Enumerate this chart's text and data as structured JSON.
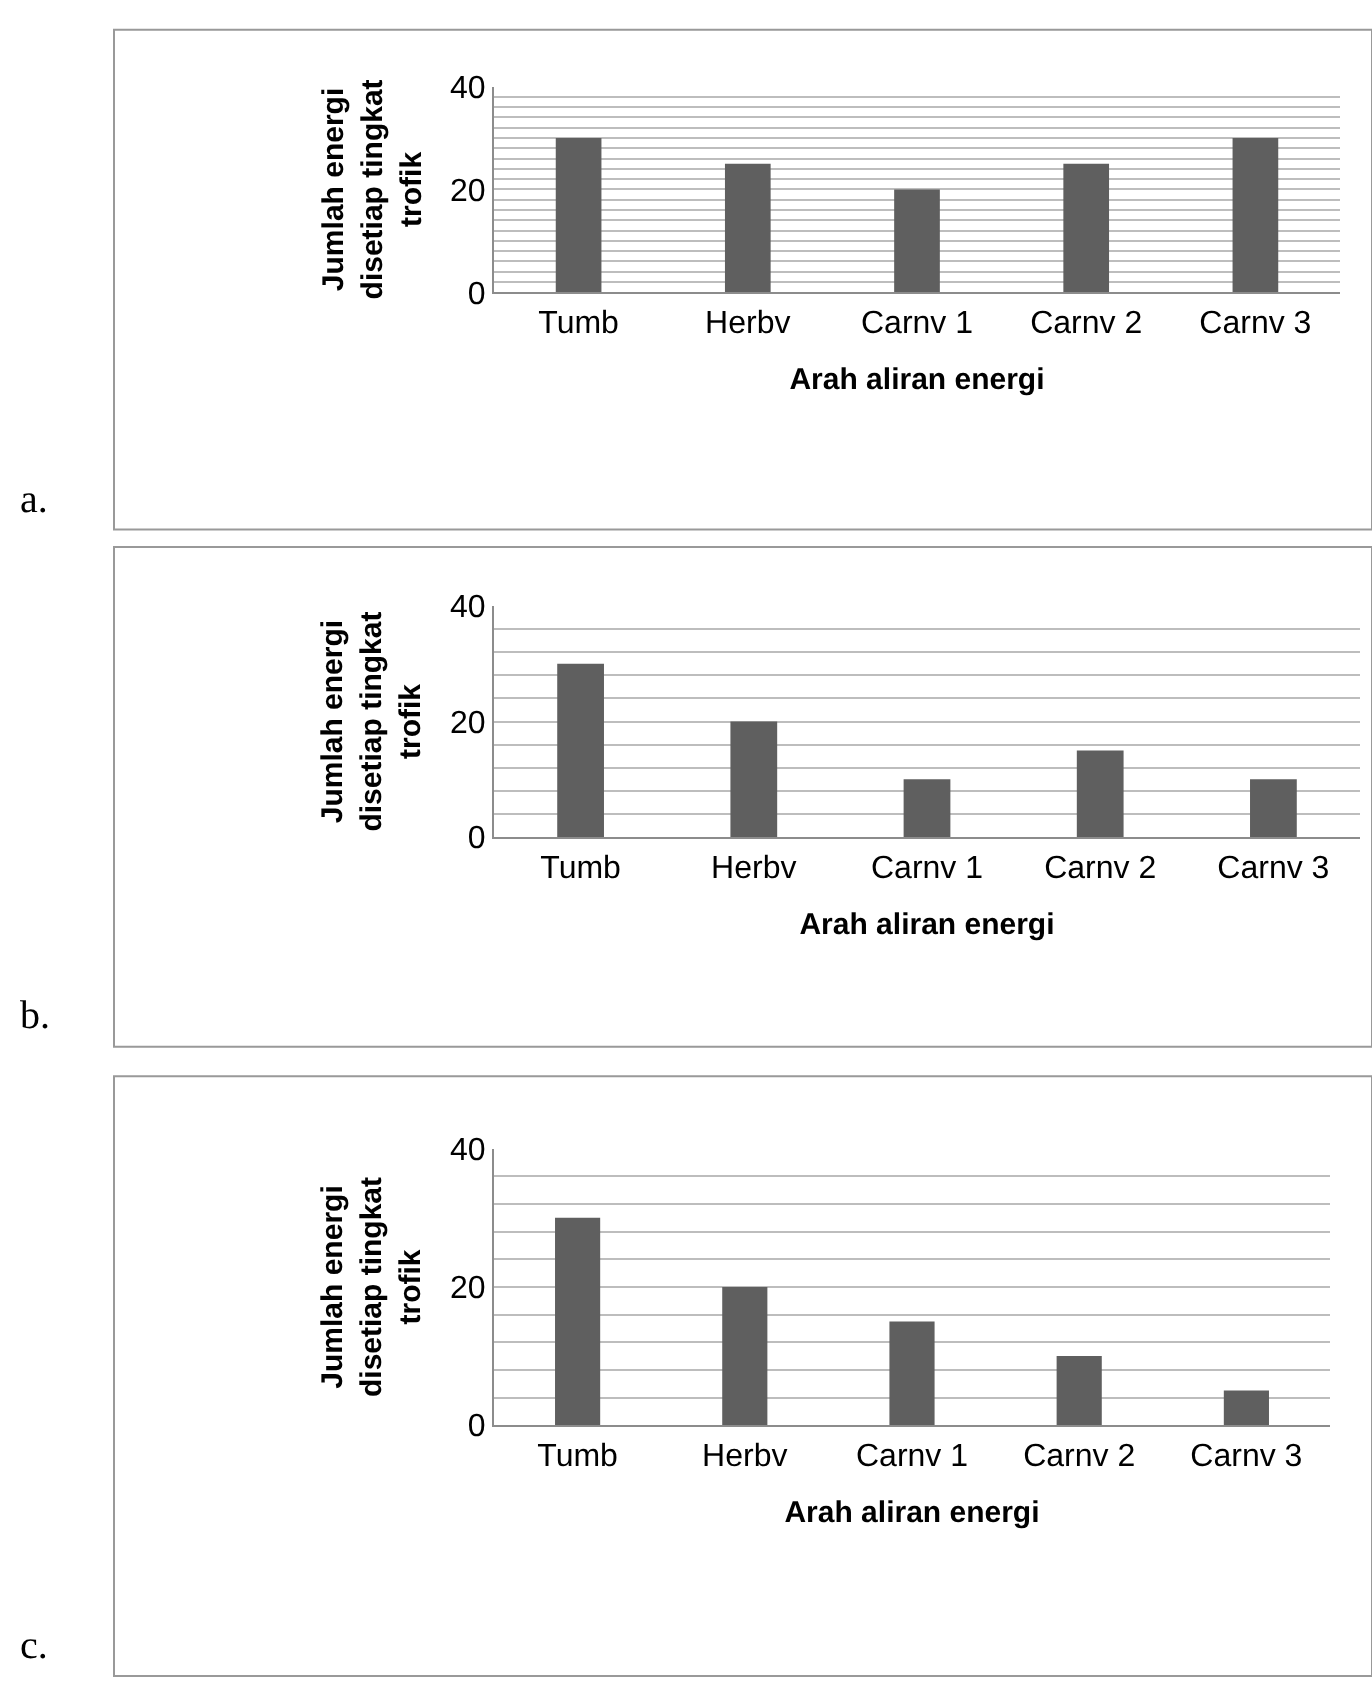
{
  "chart_data": [
    {
      "type": "bar",
      "annotations": [
        "a."
      ],
      "xlabel": "Arah aliran energi",
      "ylabel": "Jumlah energi disetiap tingkat trofik",
      "categories": [
        "Tumb",
        "Herbv",
        "Carnv 1",
        "Carnv 2",
        "Carnv 3"
      ],
      "values": [
        30,
        25,
        20,
        25,
        30
      ],
      "color": "#5f5f5f",
      "ylim": [
        0,
        40
      ],
      "yticks": [
        0,
        {
          "value": 2,
          "label": null
        },
        {
          "value": 4,
          "label": null
        },
        {
          "value": 6,
          "label": null
        },
        {
          "value": 8,
          "label": null
        },
        {
          "value": 10,
          "label": null
        },
        {
          "value": 12,
          "label": null
        },
        {
          "value": 14,
          "label": null
        },
        {
          "value": 16,
          "label": null
        },
        {
          "value": 18,
          "label": null
        },
        20,
        {
          "value": 22,
          "label": null
        },
        {
          "value": 24,
          "label": null
        },
        {
          "value": 26,
          "label": null
        },
        {
          "value": 28,
          "label": null
        },
        {
          "value": 30,
          "label": null
        },
        {
          "value": 32,
          "label": null
        },
        {
          "value": 34,
          "label": null
        },
        {
          "value": 36,
          "label": null
        },
        {
          "value": 38,
          "label": null
        },
        40
      ],
      "grid": "y"
    },
    {
      "type": "bar",
      "annotations": [
        "b."
      ],
      "xlabel": "Arah aliran energi",
      "ylabel": "Jumlah energi disetiap tingkat trofik",
      "categories": [
        "Tumb",
        "Herbv",
        "Carnv 1",
        "Carnv 2",
        "Carnv 3"
      ],
      "values": [
        30,
        20,
        10,
        15,
        10
      ],
      "color": "#5f5f5f",
      "ylim": [
        0,
        40
      ],
      "yticks": [
        0,
        {
          "value": 4,
          "label": null
        },
        {
          "value": 8,
          "label": null
        },
        {
          "value": 12,
          "label": null
        },
        {
          "value": 16,
          "label": null
        },
        20,
        {
          "value": 24,
          "label": null
        },
        {
          "value": 28,
          "label": null
        },
        {
          "value": 32,
          "label": null
        },
        {
          "value": 36,
          "label": null
        },
        40
      ],
      "grid": "y"
    },
    {
      "type": "bar",
      "annotations": [
        "c."
      ],
      "xlabel": "Arah aliran energi",
      "ylabel": "Jumlah energi disetiap tingkat trofik",
      "categories": [
        "Tumb",
        "Herbv",
        "Carnv 1",
        "Carnv 2",
        "Carnv 3"
      ],
      "values": [
        30,
        20,
        15,
        10,
        5
      ],
      "color": "#5f5f5f",
      "ylim": [
        0,
        40
      ],
      "yticks": [
        0,
        {
          "value": 4,
          "label": null
        },
        {
          "value": 8,
          "label": null
        },
        {
          "value": 12,
          "label": null
        },
        {
          "value": 16,
          "label": null
        },
        20,
        {
          "value": 24,
          "label": null
        },
        {
          "value": 28,
          "label": null
        },
        {
          "value": 32,
          "label": null
        },
        {
          "value": 36,
          "label": null
        },
        40
      ],
      "grid": "y"
    }
  ]
}
